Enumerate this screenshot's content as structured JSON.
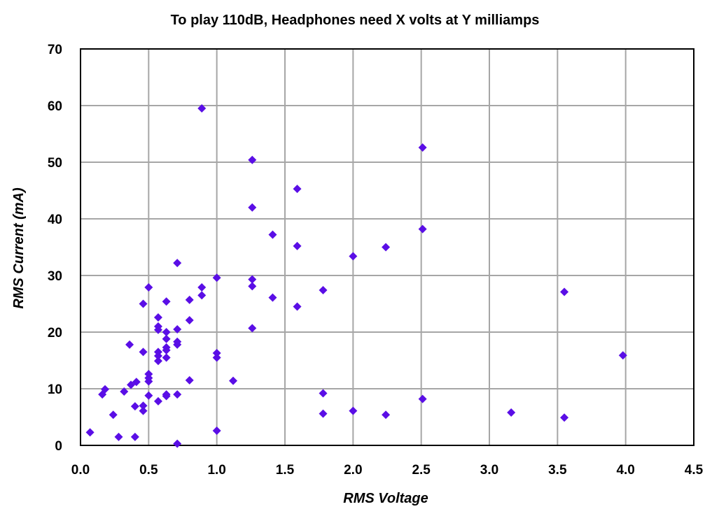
{
  "chart_data": {
    "type": "scatter",
    "title": "To play 110dB, Headphones need X volts at Y milliamps",
    "xlabel": "RMS Voltage",
    "ylabel": "RMS Current (mA)",
    "xlim": [
      0,
      4.5
    ],
    "ylim": [
      0,
      70
    ],
    "xticks": [
      "0.0",
      "0.5",
      "1.0",
      "1.5",
      "2.0",
      "2.5",
      "3.0",
      "3.5",
      "4.0",
      "4.5"
    ],
    "yticks": [
      "0",
      "10",
      "20",
      "30",
      "40",
      "50",
      "60",
      "70"
    ],
    "grid": true,
    "marker": "diamond",
    "marker_color": "#5a0ee6",
    "series": [
      {
        "points": [
          [
            0.07,
            2.3
          ],
          [
            0.16,
            9.0
          ],
          [
            0.18,
            9.9
          ],
          [
            0.24,
            5.4
          ],
          [
            0.28,
            1.5
          ],
          [
            0.32,
            9.5
          ],
          [
            0.36,
            17.8
          ],
          [
            0.37,
            10.7
          ],
          [
            0.4,
            1.5
          ],
          [
            0.4,
            6.9
          ],
          [
            0.41,
            11.2
          ],
          [
            0.46,
            25.0
          ],
          [
            0.46,
            16.5
          ],
          [
            0.46,
            7.0
          ],
          [
            0.46,
            6.1
          ],
          [
            0.5,
            27.9
          ],
          [
            0.5,
            12.6
          ],
          [
            0.5,
            11.9
          ],
          [
            0.5,
            11.3
          ],
          [
            0.5,
            8.8
          ],
          [
            0.57,
            22.6
          ],
          [
            0.57,
            21.0
          ],
          [
            0.57,
            20.4
          ],
          [
            0.57,
            16.5
          ],
          [
            0.57,
            15.8
          ],
          [
            0.57,
            14.9
          ],
          [
            0.57,
            7.8
          ],
          [
            0.63,
            25.4
          ],
          [
            0.63,
            20.0
          ],
          [
            0.63,
            18.8
          ],
          [
            0.63,
            17.3
          ],
          [
            0.63,
            16.8
          ],
          [
            0.63,
            15.5
          ],
          [
            0.63,
            9.0
          ],
          [
            0.63,
            8.7
          ],
          [
            0.71,
            32.2
          ],
          [
            0.71,
            20.5
          ],
          [
            0.71,
            18.3
          ],
          [
            0.71,
            17.8
          ],
          [
            0.71,
            9.0
          ],
          [
            0.71,
            0.3
          ],
          [
            0.8,
            25.7
          ],
          [
            0.8,
            22.1
          ],
          [
            0.8,
            11.5
          ],
          [
            0.89,
            59.5
          ],
          [
            0.89,
            27.9
          ],
          [
            0.89,
            26.5
          ],
          [
            1.0,
            29.6
          ],
          [
            1.0,
            16.3
          ],
          [
            1.0,
            15.5
          ],
          [
            1.0,
            2.6
          ],
          [
            1.12,
            11.4
          ],
          [
            1.26,
            50.4
          ],
          [
            1.26,
            42.0
          ],
          [
            1.26,
            29.3
          ],
          [
            1.26,
            28.1
          ],
          [
            1.26,
            20.7
          ],
          [
            1.41,
            37.2
          ],
          [
            1.41,
            26.1
          ],
          [
            1.59,
            45.3
          ],
          [
            1.59,
            35.2
          ],
          [
            1.59,
            24.5
          ],
          [
            1.78,
            27.4
          ],
          [
            1.78,
            9.2
          ],
          [
            1.78,
            5.6
          ],
          [
            2.0,
            33.4
          ],
          [
            2.0,
            6.1
          ],
          [
            2.24,
            35.0
          ],
          [
            2.24,
            5.4
          ],
          [
            2.51,
            52.6
          ],
          [
            2.51,
            38.2
          ],
          [
            2.51,
            8.2
          ],
          [
            3.16,
            5.8
          ],
          [
            3.55,
            27.1
          ],
          [
            3.55,
            4.9
          ],
          [
            3.98,
            15.9
          ]
        ]
      }
    ]
  }
}
